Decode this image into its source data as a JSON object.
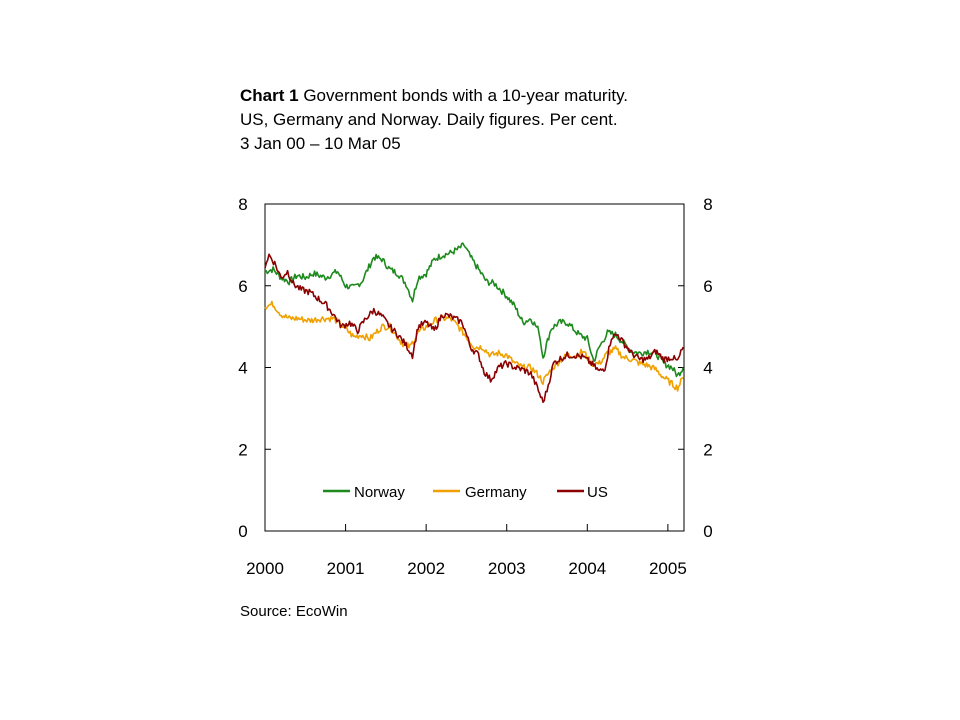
{
  "title": {
    "prefix": "Chart 1",
    "line1": "Government bonds with a 10-year maturity.",
    "line2": "US, Germany and Norway. Daily figures. Per cent.",
    "line3": "3 Jan 00 – 10 Mar 05"
  },
  "source": "Source: EcoWin",
  "chart_data": {
    "type": "line",
    "x_unit": "year",
    "xlim": [
      2000.0,
      2005.2
    ],
    "ylim": [
      0,
      8
    ],
    "y_ticks": [
      0,
      2,
      4,
      6,
      8
    ],
    "y_tick_labels": [
      "0",
      "2",
      "4",
      "6",
      "8"
    ],
    "x_ticks": [
      2000,
      2001,
      2002,
      2003,
      2004,
      2005
    ],
    "x_tick_labels": [
      "2000",
      "2001",
      "2002",
      "2003",
      "2004",
      "2005"
    ],
    "right_axis": true,
    "grid": false,
    "legend": "inside-bottom",
    "series": [
      {
        "name": "Norway",
        "color": "#1e8a1e",
        "x": [
          2000.0,
          2000.1,
          2000.2,
          2000.3,
          2000.4,
          2000.5,
          2000.6,
          2000.75,
          2000.9,
          2001.0,
          2001.1,
          2001.2,
          2001.35,
          2001.45,
          2001.55,
          2001.65,
          2001.75,
          2001.83,
          2001.9,
          2002.0,
          2002.1,
          2002.2,
          2002.3,
          2002.4,
          2002.47,
          2002.55,
          2002.65,
          2002.75,
          2002.85,
          2003.0,
          2003.1,
          2003.2,
          2003.3,
          2003.4,
          2003.45,
          2003.55,
          2003.65,
          2003.75,
          2003.9,
          2004.0,
          2004.08,
          2004.15,
          2004.25,
          2004.35,
          2004.45,
          2004.55,
          2004.65,
          2004.75,
          2004.85,
          2004.95,
          2005.05,
          2005.12,
          2005.19
        ],
        "y": [
          6.35,
          6.4,
          6.2,
          6.1,
          6.25,
          6.2,
          6.3,
          6.2,
          6.35,
          6.0,
          5.95,
          6.1,
          6.7,
          6.65,
          6.4,
          6.3,
          6.05,
          5.65,
          6.2,
          6.3,
          6.65,
          6.75,
          6.8,
          6.9,
          7.0,
          6.7,
          6.4,
          6.1,
          6.05,
          5.75,
          5.5,
          5.1,
          5.2,
          4.9,
          4.25,
          4.95,
          5.1,
          5.1,
          4.8,
          4.7,
          4.15,
          4.5,
          4.85,
          4.8,
          4.6,
          4.4,
          4.35,
          4.4,
          4.35,
          4.1,
          4.0,
          3.8,
          4.0
        ]
      },
      {
        "name": "Germany",
        "color": "#f0a000",
        "x": [
          2000.0,
          2000.1,
          2000.2,
          2000.3,
          2000.4,
          2000.55,
          2000.7,
          2000.85,
          2001.0,
          2001.1,
          2001.2,
          2001.3,
          2001.45,
          2001.55,
          2001.7,
          2001.8,
          2001.9,
          2002.0,
          2002.15,
          2002.3,
          2002.4,
          2002.5,
          2002.6,
          2002.7,
          2002.8,
          2002.9,
          2003.0,
          2003.1,
          2003.2,
          2003.3,
          2003.4,
          2003.45,
          2003.55,
          2003.65,
          2003.75,
          2003.85,
          2003.95,
          2004.05,
          2004.15,
          2004.25,
          2004.35,
          2004.45,
          2004.55,
          2004.65,
          2004.75,
          2004.85,
          2004.95,
          2005.05,
          2005.12,
          2005.19
        ],
        "y": [
          5.5,
          5.55,
          5.3,
          5.2,
          5.2,
          5.15,
          5.2,
          5.2,
          4.95,
          4.75,
          4.8,
          4.7,
          5.0,
          5.0,
          4.6,
          4.5,
          4.85,
          5.0,
          5.2,
          5.2,
          5.0,
          4.75,
          4.5,
          4.5,
          4.3,
          4.35,
          4.3,
          4.1,
          4.0,
          4.0,
          3.8,
          3.65,
          3.95,
          4.15,
          4.3,
          4.3,
          4.4,
          4.1,
          4.1,
          4.35,
          4.45,
          4.25,
          4.2,
          4.1,
          4.05,
          3.95,
          3.75,
          3.6,
          3.5,
          3.75
        ]
      },
      {
        "name": "US",
        "color": "#8b0000",
        "x": [
          2000.0,
          2000.05,
          2000.12,
          2000.2,
          2000.28,
          2000.35,
          2000.45,
          2000.55,
          2000.65,
          2000.75,
          2000.85,
          2000.95,
          2001.05,
          2001.15,
          2001.25,
          2001.35,
          2001.45,
          2001.55,
          2001.65,
          2001.75,
          2001.83,
          2001.9,
          2002.0,
          2002.1,
          2002.2,
          2002.3,
          2002.45,
          2002.55,
          2002.65,
          2002.72,
          2002.8,
          2002.9,
          2003.0,
          2003.1,
          2003.2,
          2003.3,
          2003.38,
          2003.45,
          2003.5,
          2003.58,
          2003.65,
          2003.75,
          2003.85,
          2003.95,
          2004.05,
          2004.15,
          2004.22,
          2004.3,
          2004.38,
          2004.45,
          2004.55,
          2004.65,
          2004.75,
          2004.85,
          2004.95,
          2005.05,
          2005.12,
          2005.19
        ],
        "y": [
          6.5,
          6.75,
          6.55,
          6.2,
          6.35,
          6.05,
          5.9,
          5.85,
          5.7,
          5.55,
          5.3,
          5.0,
          5.1,
          4.9,
          5.2,
          5.4,
          5.25,
          5.0,
          4.8,
          4.55,
          4.3,
          5.0,
          5.1,
          4.9,
          5.3,
          5.25,
          5.1,
          4.5,
          4.3,
          3.9,
          3.7,
          4.0,
          4.1,
          4.0,
          3.95,
          3.85,
          3.5,
          3.15,
          3.45,
          4.1,
          4.2,
          4.3,
          4.3,
          4.25,
          4.1,
          3.9,
          4.0,
          4.75,
          4.8,
          4.6,
          4.35,
          4.2,
          4.2,
          4.4,
          4.2,
          4.25,
          4.15,
          4.5
        ]
      }
    ]
  }
}
